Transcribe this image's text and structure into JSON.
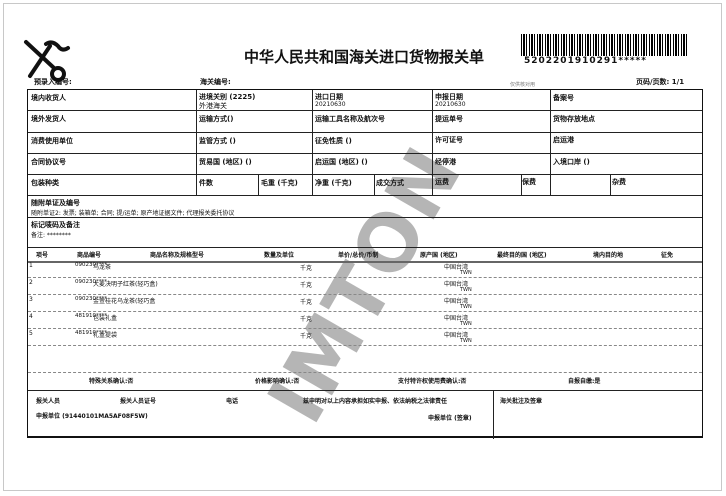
{
  "header": {
    "title": "中华人民共和国海关进口货物报关单",
    "barcode_number": "5202201910291*****",
    "pre_entry_no_label": "预录入编号:",
    "customs_no_label": "海关编号:",
    "tiny_note": "仅供核对用",
    "page_label": "页码/页数: 1/1"
  },
  "fields": {
    "consignee": "境内收货人",
    "entry_customs": "进境关别 (2225)",
    "entry_customs_value": "外港海关",
    "import_date": "进口日期",
    "import_date_value": "20210630",
    "declare_date": "申报日期",
    "declare_date_value": "20210630",
    "record_no": "备案号",
    "consignor": "境外发货人",
    "transport_mode": "运输方式()",
    "vessel": "运输工具名称及航次号",
    "bill_no": "提运单号",
    "storage_place": "货物存放地点",
    "consumer": "消费使用单位",
    "supervision": "监管方式 ()",
    "levy_nature": "征免性质 ()",
    "license_no": "许可证号",
    "departure_port": "启运港",
    "contract_no": "合同协议号",
    "trade_country": "贸易国 (地区) ()",
    "origin_country": "启运国 (地区) ()",
    "stop_port": "经停港",
    "entry_port": "入境口岸 ()",
    "package_type": "包装种类",
    "pieces": "件数",
    "gross_weight": "毛重 (千克)",
    "net_weight": "净重 (千克)",
    "deal_mode": "成交方式",
    "freight": "运费",
    "insurance": "保费",
    "misc_fee": "杂费",
    "attached_docs_label": "随附单证及编号",
    "attached_docs_value": "随附单证2: 发票; 装箱单; 合同; 提/运单; 原产地证据文件; 代理报关委托协议",
    "marks_label": "标记唛码及备注",
    "marks_value": "备注: ********"
  },
  "items": {
    "headers": [
      "项号",
      "商品编号",
      "商品名称及规格型号",
      "数量及单位",
      "单价/总价/币制",
      "原产国 (地区)",
      "最终目的国 (地区)",
      "境内目的地",
      "征免"
    ],
    "rows": [
      {
        "no": "1",
        "code": "090230****",
        "name": "乌龙茶",
        "unit": "千克",
        "origin": "中国台湾",
        "origin_code": "TWN"
      },
      {
        "no": "2",
        "code": "090230****",
        "name": "大麦决明子红茶(轻巧盒)",
        "unit": "千克",
        "origin": "中国台湾",
        "origin_code": "TWN"
      },
      {
        "no": "3",
        "code": "090230****",
        "name": "金萱桂花乌龙茶(轻巧盒",
        "unit": "千克",
        "origin": "中国台湾",
        "origin_code": "TWN"
      },
      {
        "no": "4",
        "code": "481910****",
        "name": "包装礼盒",
        "unit": "千克",
        "origin": "中国台湾",
        "origin_code": "TWN"
      },
      {
        "no": "5",
        "code": "481910****",
        "name": "礼盒提袋",
        "unit": "千克",
        "origin": "中国台湾",
        "origin_code": "TWN"
      }
    ]
  },
  "confirm": {
    "special": "特殊关系确认:否",
    "price": "价格影响确认:否",
    "royalty": "支付特许权使用费确认:否",
    "self": "自报自缴:是"
  },
  "footer": {
    "declarant": "报关人员",
    "declarant_cert": "报关人员证号",
    "phone": "电话",
    "statement": "兹申明对以上内容承担如实申报、依法纳税之法律责任",
    "declare_unit": "申报单位 (91440101MA5AF08F5W)",
    "declare_unit_seal": "申报单位 (签章)",
    "customs_approval": "海关批注及签章"
  },
  "watermark": "IMTON"
}
